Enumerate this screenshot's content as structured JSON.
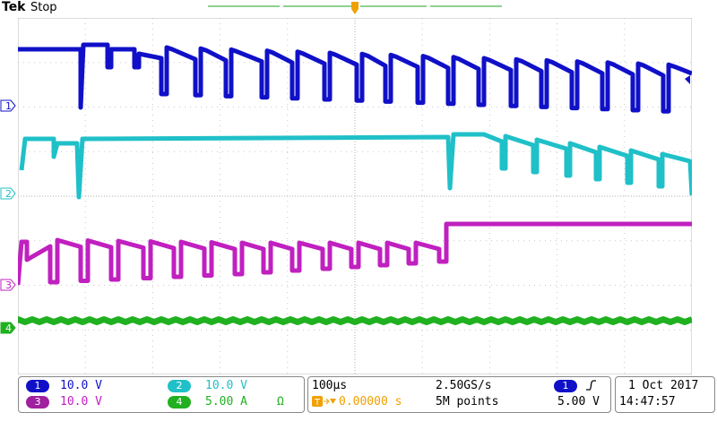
{
  "header": {
    "brand": "Tek",
    "state": "Stop"
  },
  "colors": {
    "ch1": "#1010c8",
    "ch2": "#20c0c8",
    "ch3": "#c020c0",
    "ch4": "#20b020",
    "trigger": "#f0a000",
    "grid": "#b8b8b8"
  },
  "channels": [
    {
      "num": "1",
      "scale": "10.0 V"
    },
    {
      "num": "2",
      "scale": "10.0 V"
    },
    {
      "num": "3",
      "scale": "10.0 V"
    },
    {
      "num": "4",
      "scale": "5.00 A",
      "unit_symbol": "Ω"
    }
  ],
  "trigger_marker": "T",
  "timebase": {
    "scale": "100µs",
    "sample_rate": "2.50GS/s",
    "position": "0.00000 s",
    "record": "5M points"
  },
  "trigger": {
    "source": "1",
    "slope_icon": "rising-edge-icon",
    "level": "5.00 V"
  },
  "datetime": {
    "date": "1 Oct  2017",
    "time": "14:47:57"
  }
}
